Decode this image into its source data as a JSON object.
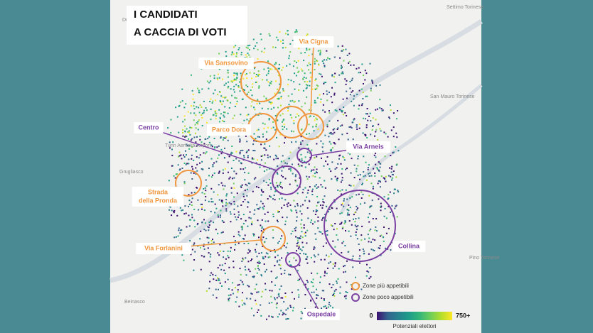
{
  "title": [
    "I CANDIDATI",
    "A CACCIA DI VOTI"
  ],
  "places": [
    "Druento",
    "Settimo Torinese",
    "Grugliasco",
    "Turin Aeritalia Airport",
    "San Mauro Torinese",
    "Pino Torinese",
    "Beinasco"
  ],
  "zones": [
    {
      "label": [
        "Via Sansovino"
      ],
      "kind": "appetibili"
    },
    {
      "label": [
        "Via Cigna"
      ],
      "kind": "appetibili"
    },
    {
      "label": [
        "Parco Dora"
      ],
      "kind": "appetibili"
    },
    {
      "label": [
        "Strada",
        "della Pronda"
      ],
      "kind": "appetibili"
    },
    {
      "label": [
        "Via Forlanini"
      ],
      "kind": "appetibili"
    },
    {
      "label": [
        "Centro"
      ],
      "kind": "poco"
    },
    {
      "label": [
        "Via Arneis"
      ],
      "kind": "poco"
    },
    {
      "label": [
        "Collina"
      ],
      "kind": "poco"
    },
    {
      "label": [
        "Ospedale"
      ],
      "kind": "poco"
    }
  ],
  "legend": {
    "appetibili": {
      "label": "Zone più appetibili",
      "color": "#f0963c"
    },
    "poco": {
      "label": "Zone poco appetibili",
      "color": "#7b3fa2"
    }
  },
  "colorbar": {
    "min": "0",
    "max": "750+",
    "title": "Potenziali elettori"
  }
}
